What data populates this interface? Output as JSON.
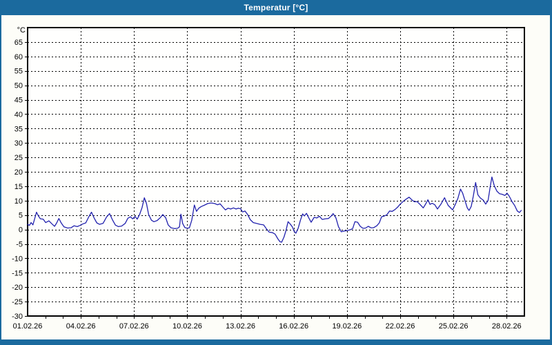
{
  "window": {
    "title": "Temperatur [°C]"
  },
  "theme": {
    "frame_color": "#1b6a9e",
    "title_text_color": "#ffffff",
    "page_bg": "#fdfdf8",
    "plot_bg": "#fffffe",
    "grid_color": "#000000",
    "axis_color": "#000000",
    "line_color": "#2121ad"
  },
  "chart_data": {
    "type": "line",
    "title": "Temperatur [°C]",
    "y_unit_label": "°C",
    "xlabel": "",
    "ylabel": "°C",
    "ylim": [
      -30,
      70
    ],
    "y_tick_step": 5,
    "y_tick_values": [
      65,
      60,
      55,
      50,
      45,
      40,
      35,
      30,
      25,
      20,
      15,
      10,
      5,
      0,
      -5,
      -10,
      -15,
      -20,
      -25,
      -30
    ],
    "x_total_days": 28,
    "x_tick_days": [
      0,
      3,
      6,
      9,
      12,
      15,
      18,
      21,
      24,
      27
    ],
    "x_tick_labels": [
      "01.02.26",
      "04.02.26",
      "07.02.26",
      "10.02.26",
      "13.02.26",
      "16.02.26",
      "19.02.26",
      "22.02.26",
      "25.02.26",
      "28.02.26"
    ],
    "x_gridline_days": [
      3,
      6,
      9,
      12,
      15,
      18,
      21,
      24,
      27
    ],
    "grid": "dashed",
    "legend": "none",
    "series": [
      {
        "name": "Temperatur",
        "points": [
          [
            0,
            1.8
          ],
          [
            0.1,
            1.4
          ],
          [
            0.2,
            2.4
          ],
          [
            0.3,
            1.6
          ],
          [
            0.42,
            4.2
          ],
          [
            0.5,
            6.0
          ],
          [
            0.62,
            4.6
          ],
          [
            0.72,
            3.7
          ],
          [
            0.88,
            3.6
          ],
          [
            1.02,
            2.4
          ],
          [
            1.2,
            3.0
          ],
          [
            1.38,
            1.9
          ],
          [
            1.52,
            1.1
          ],
          [
            1.64,
            2.3
          ],
          [
            1.76,
            3.8
          ],
          [
            1.9,
            2.2
          ],
          [
            2.05,
            0.9
          ],
          [
            2.25,
            0.5
          ],
          [
            2.45,
            0.6
          ],
          [
            2.62,
            1.3
          ],
          [
            2.8,
            1.0
          ],
          [
            2.95,
            1.4
          ],
          [
            3.1,
            1.9
          ],
          [
            3.28,
            2.3
          ],
          [
            3.45,
            4.4
          ],
          [
            3.6,
            6.0
          ],
          [
            3.75,
            4.0
          ],
          [
            3.9,
            2.3
          ],
          [
            4.05,
            1.8
          ],
          [
            4.25,
            2.1
          ],
          [
            4.45,
            4.3
          ],
          [
            4.62,
            5.5
          ],
          [
            4.78,
            3.4
          ],
          [
            4.95,
            1.5
          ],
          [
            5.12,
            1.0
          ],
          [
            5.3,
            1.2
          ],
          [
            5.5,
            2.1
          ],
          [
            5.65,
            3.9
          ],
          [
            5.8,
            4.4
          ],
          [
            5.92,
            3.7
          ],
          [
            6.05,
            4.5
          ],
          [
            6.18,
            3.6
          ],
          [
            6.32,
            5.3
          ],
          [
            6.45,
            7.6
          ],
          [
            6.58,
            11.0
          ],
          [
            6.7,
            9.0
          ],
          [
            6.82,
            5.2
          ],
          [
            6.98,
            3.2
          ],
          [
            7.12,
            2.7
          ],
          [
            7.3,
            3.1
          ],
          [
            7.48,
            4.1
          ],
          [
            7.62,
            5.2
          ],
          [
            7.78,
            4.1
          ],
          [
            7.92,
            1.6
          ],
          [
            8.08,
            0.6
          ],
          [
            8.28,
            0.3
          ],
          [
            8.45,
            0.4
          ],
          [
            8.56,
            0.9
          ],
          [
            8.64,
            5.3
          ],
          [
            8.74,
            2.1
          ],
          [
            8.86,
            0.7
          ],
          [
            9.0,
            0.4
          ],
          [
            9.12,
            0.6
          ],
          [
            9.25,
            3.2
          ],
          [
            9.4,
            8.5
          ],
          [
            9.52,
            6.3
          ],
          [
            9.65,
            7.4
          ],
          [
            9.8,
            8.0
          ],
          [
            9.95,
            8.4
          ],
          [
            10.15,
            9.0
          ],
          [
            10.35,
            9.2
          ],
          [
            10.55,
            9.0
          ],
          [
            10.7,
            8.6
          ],
          [
            10.85,
            8.9
          ],
          [
            11.0,
            7.8
          ],
          [
            11.15,
            6.8
          ],
          [
            11.3,
            7.4
          ],
          [
            11.45,
            7.1
          ],
          [
            11.6,
            7.5
          ],
          [
            11.75,
            7.1
          ],
          [
            11.88,
            7.4
          ],
          [
            12.0,
            7.2
          ],
          [
            12.12,
            6.1
          ],
          [
            12.25,
            6.4
          ],
          [
            12.4,
            5.2
          ],
          [
            12.55,
            3.4
          ],
          [
            12.72,
            2.4
          ],
          [
            12.9,
            2.1
          ],
          [
            13.1,
            1.8
          ],
          [
            13.3,
            1.6
          ],
          [
            13.48,
            0.1
          ],
          [
            13.62,
            -0.9
          ],
          [
            13.8,
            -1.1
          ],
          [
            13.95,
            -1.6
          ],
          [
            14.1,
            -3.2
          ],
          [
            14.22,
            -4.2
          ],
          [
            14.32,
            -4.4
          ],
          [
            14.45,
            -2.6
          ],
          [
            14.56,
            -0.4
          ],
          [
            14.68,
            2.7
          ],
          [
            14.8,
            1.9
          ],
          [
            14.92,
            0.9
          ],
          [
            15.02,
            -0.6
          ],
          [
            15.12,
            -1.3
          ],
          [
            15.25,
            0.4
          ],
          [
            15.38,
            3.3
          ],
          [
            15.5,
            5.4
          ],
          [
            15.6,
            4.7
          ],
          [
            15.72,
            5.6
          ],
          [
            15.85,
            4.0
          ],
          [
            15.98,
            2.5
          ],
          [
            16.15,
            4.2
          ],
          [
            16.3,
            4.0
          ],
          [
            16.45,
            4.6
          ],
          [
            16.6,
            3.5
          ],
          [
            16.78,
            3.7
          ],
          [
            16.95,
            3.8
          ],
          [
            17.1,
            4.6
          ],
          [
            17.22,
            5.5
          ],
          [
            17.38,
            4.0
          ],
          [
            17.52,
            1.0
          ],
          [
            17.68,
            -0.8
          ],
          [
            17.85,
            -0.5
          ],
          [
            18.0,
            -0.4
          ],
          [
            18.18,
            -0.1
          ],
          [
            18.32,
            0.3
          ],
          [
            18.45,
            2.7
          ],
          [
            18.6,
            2.5
          ],
          [
            18.75,
            1.1
          ],
          [
            18.9,
            0.4
          ],
          [
            19.05,
            0.5
          ],
          [
            19.2,
            1.1
          ],
          [
            19.35,
            0.6
          ],
          [
            19.5,
            0.6
          ],
          [
            19.68,
            1.3
          ],
          [
            19.82,
            2.3
          ],
          [
            19.95,
            4.4
          ],
          [
            20.1,
            4.7
          ],
          [
            20.25,
            5.1
          ],
          [
            20.4,
            6.4
          ],
          [
            20.55,
            6.3
          ],
          [
            20.7,
            6.9
          ],
          [
            20.85,
            7.7
          ],
          [
            21.0,
            8.8
          ],
          [
            21.18,
            9.8
          ],
          [
            21.35,
            10.6
          ],
          [
            21.5,
            11.2
          ],
          [
            21.65,
            10.3
          ],
          [
            21.8,
            9.6
          ],
          [
            21.95,
            9.7
          ],
          [
            22.1,
            8.8
          ],
          [
            22.3,
            7.5
          ],
          [
            22.45,
            9.0
          ],
          [
            22.56,
            10.3
          ],
          [
            22.68,
            8.7
          ],
          [
            22.8,
            9.1
          ],
          [
            22.95,
            8.6
          ],
          [
            23.1,
            7.1
          ],
          [
            23.3,
            8.8
          ],
          [
            23.5,
            11.0
          ],
          [
            23.7,
            8.4
          ],
          [
            23.95,
            6.8
          ],
          [
            24.1,
            8.6
          ],
          [
            24.25,
            10.8
          ],
          [
            24.4,
            14.0
          ],
          [
            24.52,
            12.6
          ],
          [
            24.65,
            10.0
          ],
          [
            24.78,
            7.5
          ],
          [
            24.88,
            6.6
          ],
          [
            25.0,
            8.0
          ],
          [
            25.12,
            11.5
          ],
          [
            25.25,
            16.3
          ],
          [
            25.38,
            12.0
          ],
          [
            25.52,
            10.9
          ],
          [
            25.68,
            10.2
          ],
          [
            25.82,
            8.8
          ],
          [
            25.95,
            10.0
          ],
          [
            26.08,
            15.0
          ],
          [
            26.17,
            18.2
          ],
          [
            26.3,
            15.2
          ],
          [
            26.45,
            13.3
          ],
          [
            26.6,
            12.4
          ],
          [
            26.75,
            12.2
          ],
          [
            26.9,
            11.8
          ],
          [
            27.02,
            12.6
          ],
          [
            27.15,
            11.5
          ],
          [
            27.3,
            9.7
          ],
          [
            27.45,
            8.3
          ],
          [
            27.6,
            6.4
          ],
          [
            27.72,
            5.9
          ],
          [
            27.82,
            6.6
          ]
        ]
      }
    ]
  }
}
